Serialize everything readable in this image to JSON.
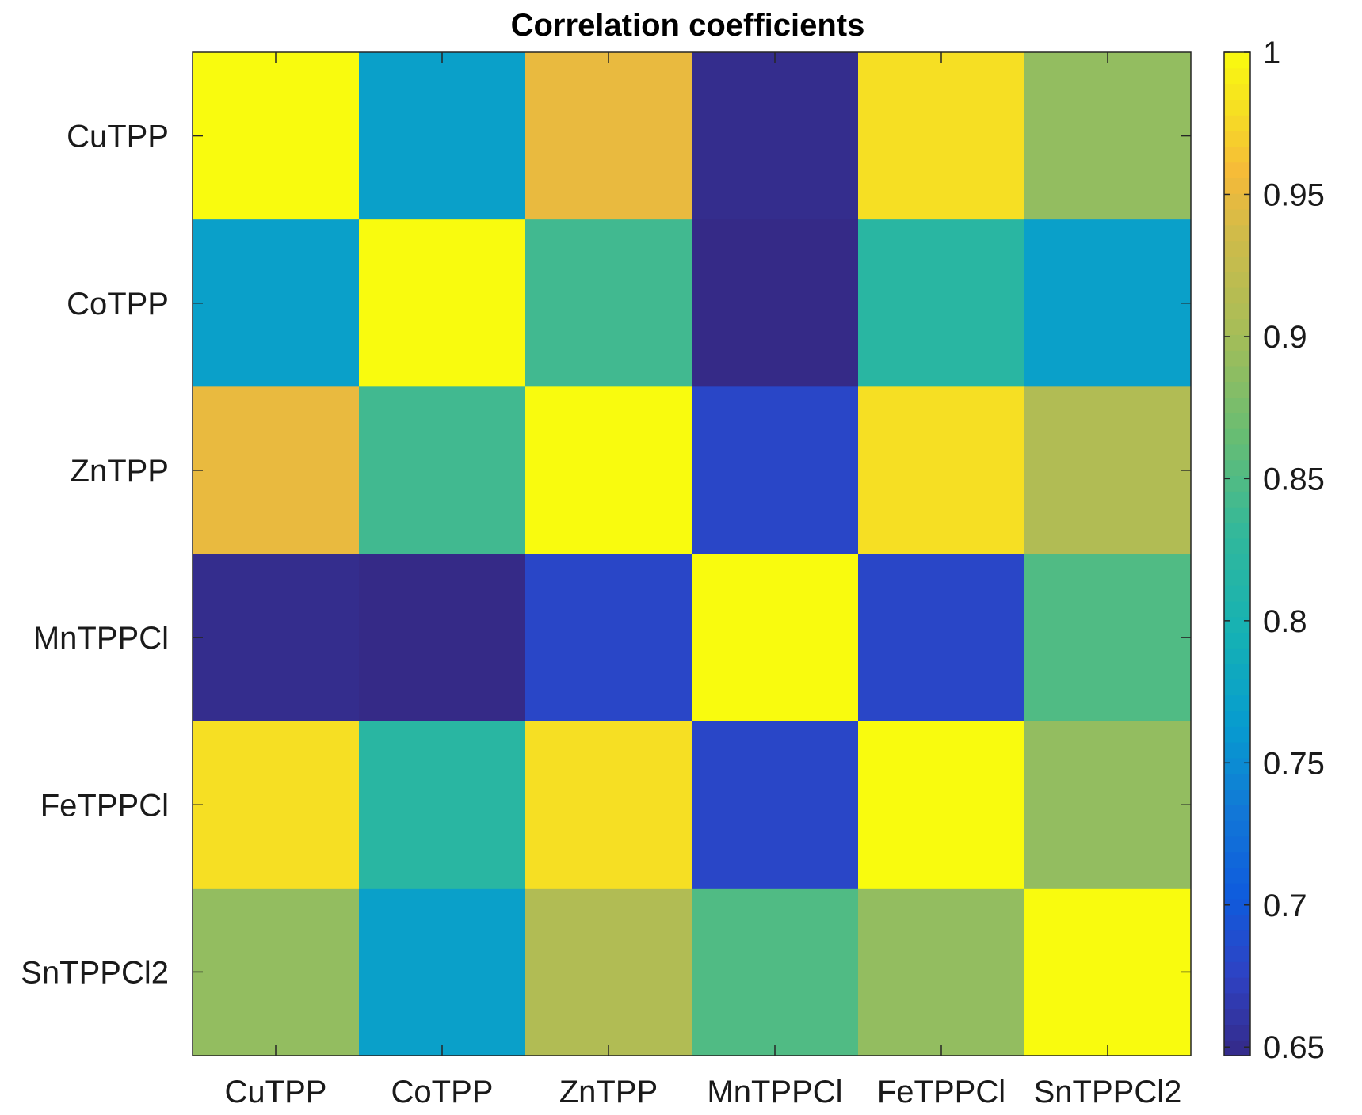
{
  "chart_data": {
    "type": "heatmap",
    "title": "Correlation coefficients",
    "xlabel": "",
    "ylabel": "",
    "row_labels": [
      "CuTPP",
      "CoTPP",
      "ZnTPP",
      "MnTPPCl",
      "FeTPPCl",
      "SnTPPCl2"
    ],
    "col_labels": [
      "CuTPP",
      "CoTPP",
      "ZnTPP",
      "MnTPPCl",
      "FeTPPCl",
      "SnTPPCl2"
    ],
    "values": [
      [
        1.0,
        0.77,
        0.95,
        0.65,
        0.98,
        0.89
      ],
      [
        0.77,
        1.0,
        0.84,
        0.64,
        0.82,
        0.77
      ],
      [
        0.95,
        0.84,
        1.0,
        0.68,
        0.98,
        0.91
      ],
      [
        0.65,
        0.64,
        0.68,
        1.0,
        0.68,
        0.85
      ],
      [
        0.98,
        0.82,
        0.98,
        0.68,
        1.0,
        0.89
      ],
      [
        0.89,
        0.77,
        0.91,
        0.85,
        0.89,
        1.0
      ]
    ],
    "colorbar": {
      "range": [
        0.647,
        1.0
      ],
      "ticks": [
        0.65,
        0.7,
        0.75,
        0.8,
        0.85,
        0.9,
        0.95,
        1
      ],
      "tick_labels": [
        "0.65",
        "0.7",
        "0.75",
        "0.8",
        "0.85",
        "0.9",
        "0.95",
        "1"
      ],
      "position": "right",
      "colormap": "parula"
    },
    "grid": false
  }
}
